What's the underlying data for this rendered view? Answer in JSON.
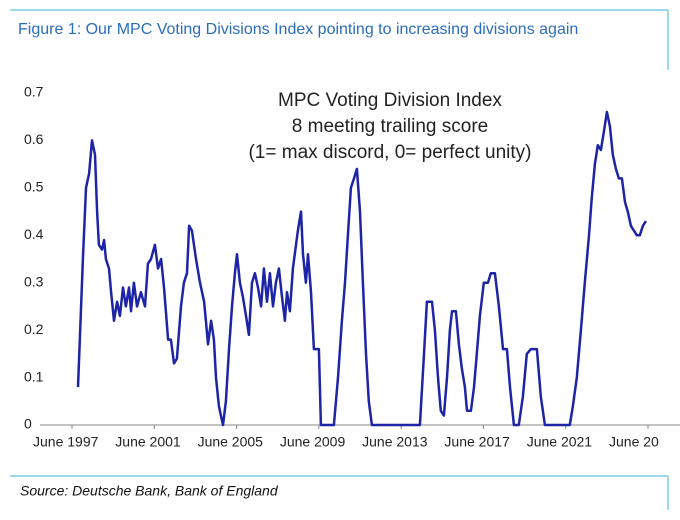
{
  "chart_data": {
    "type": "line",
    "title": "Figure 1: Our MPC Voting Divisions Index pointing to increasing divisions again",
    "annotation": [
      "MPC Voting Division Index",
      "8 meeting trailing score",
      "(1= max discord, 0= perfect unity)"
    ],
    "source": "Source: Deutsche Bank, Bank of England",
    "color": "#1e24a6",
    "x": [
      1997.79,
      1998.03,
      1998.18,
      1998.33,
      1998.47,
      1998.62,
      1998.72,
      1998.81,
      1998.96,
      1999.06,
      1999.15,
      1999.3,
      1999.4,
      1999.54,
      1999.69,
      1999.83,
      1999.98,
      2000.12,
      2000.27,
      2000.37,
      2000.51,
      2000.66,
      2000.85,
      2001.05,
      2001.19,
      2001.34,
      2001.53,
      2001.68,
      2001.83,
      2001.97,
      2002.17,
      2002.31,
      2002.46,
      2002.6,
      2002.8,
      2002.94,
      2003.09,
      2003.19,
      2003.33,
      2003.53,
      2003.72,
      2003.92,
      2004.01,
      2004.11,
      2004.26,
      2004.4,
      2004.5,
      2004.64,
      2004.74,
      2004.84,
      2004.98,
      2005.13,
      2005.28,
      2005.42,
      2005.52,
      2005.66,
      2005.81,
      2005.96,
      2006.1,
      2006.25,
      2006.39,
      2006.54,
      2006.69,
      2006.83,
      2006.98,
      2007.12,
      2007.27,
      2007.41,
      2007.56,
      2007.71,
      2007.85,
      2007.95,
      2008.09,
      2008.24,
      2008.39,
      2008.48,
      2008.63,
      2008.73,
      2008.87,
      2008.97,
      2009.12,
      2009.26,
      2009.41,
      2009.5,
      2009.6,
      2010.23,
      2010.43,
      2010.62,
      2010.77,
      2010.91,
      2011.06,
      2011.21,
      2011.35,
      2011.5,
      2011.64,
      2011.79,
      2011.93,
      2012.08,
      2014.41,
      2014.61,
      2014.75,
      2015.0,
      2015.14,
      2015.29,
      2015.43,
      2015.58,
      2015.73,
      2015.87,
      2015.97,
      2016.16,
      2016.31,
      2016.45,
      2016.6,
      2016.7,
      2016.89,
      2017.04,
      2017.18,
      2017.33,
      2017.52,
      2017.72,
      2017.86,
      2018.06,
      2018.25,
      2018.45,
      2018.64,
      2018.79,
      2018.98,
      2019.22,
      2019.42,
      2019.61,
      2019.81,
      2020.1,
      2020.29,
      2020.49,
      2021.7,
      2021.85,
      2022.04,
      2022.24,
      2022.43,
      2022.63,
      2022.77,
      2022.92,
      2023.06,
      2023.21,
      2023.36,
      2023.5,
      2023.65,
      2023.79,
      2023.94,
      2024.08,
      2024.23,
      2024.38,
      2024.52,
      2024.67,
      2024.81,
      2024.96,
      2025.1,
      2025.25,
      2025.4
    ],
    "values": [
      0.08,
      0.35,
      0.5,
      0.53,
      0.6,
      0.57,
      0.45,
      0.38,
      0.37,
      0.39,
      0.35,
      0.33,
      0.28,
      0.22,
      0.26,
      0.23,
      0.29,
      0.25,
      0.29,
      0.24,
      0.3,
      0.25,
      0.28,
      0.25,
      0.34,
      0.35,
      0.38,
      0.33,
      0.35,
      0.29,
      0.18,
      0.18,
      0.13,
      0.14,
      0.25,
      0.3,
      0.32,
      0.42,
      0.41,
      0.35,
      0.3,
      0.26,
      0.22,
      0.17,
      0.22,
      0.18,
      0.1,
      0.04,
      0.02,
      0,
      0.05,
      0.16,
      0.25,
      0.32,
      0.36,
      0.3,
      0.27,
      0.23,
      0.19,
      0.3,
      0.32,
      0.29,
      0.25,
      0.33,
      0.26,
      0.32,
      0.25,
      0.3,
      0.33,
      0.27,
      0.22,
      0.28,
      0.24,
      0.33,
      0.38,
      0.41,
      0.45,
      0.36,
      0.3,
      0.36,
      0.28,
      0.16,
      0.16,
      0.16,
      0,
      0,
      0.1,
      0.22,
      0.3,
      0.4,
      0.5,
      0.52,
      0.54,
      0.45,
      0.3,
      0.15,
      0.05,
      0,
      0,
      0.15,
      0.26,
      0.26,
      0.2,
      0.1,
      0.03,
      0.02,
      0.1,
      0.2,
      0.24,
      0.24,
      0.17,
      0.12,
      0.08,
      0.03,
      0.03,
      0.08,
      0.15,
      0.23,
      0.3,
      0.3,
      0.32,
      0.32,
      0.25,
      0.16,
      0.16,
      0.08,
      0,
      0,
      0.06,
      0.15,
      0.16,
      0.16,
      0.06,
      0,
      0,
      0.04,
      0.1,
      0.2,
      0.3,
      0.4,
      0.48,
      0.55,
      0.59,
      0.58,
      0.62,
      0.66,
      0.63,
      0.57,
      0.54,
      0.52,
      0.52,
      0.47,
      0.45,
      0.42,
      0.41,
      0.4,
      0.4,
      0.42,
      0.43
    ],
    "xlim": [
      1997.5,
      2025.5
    ],
    "xticks": [
      {
        "value": 1997.5,
        "label": "June 1997"
      },
      {
        "value": 2001.5,
        "label": "June 2001"
      },
      {
        "value": 2005.5,
        "label": "June 2005"
      },
      {
        "value": 2009.5,
        "label": "June 2009"
      },
      {
        "value": 2013.5,
        "label": "June 2013"
      },
      {
        "value": 2017.5,
        "label": "June 2017"
      },
      {
        "value": 2021.5,
        "label": "June 2021"
      },
      {
        "value": 2025.5,
        "label": "June 20"
      }
    ],
    "ylim": [
      0,
      0.7
    ],
    "yticks": [
      0,
      0.1,
      0.2,
      0.3,
      0.4,
      0.5,
      0.6,
      0.7
    ],
    "grid": false
  }
}
